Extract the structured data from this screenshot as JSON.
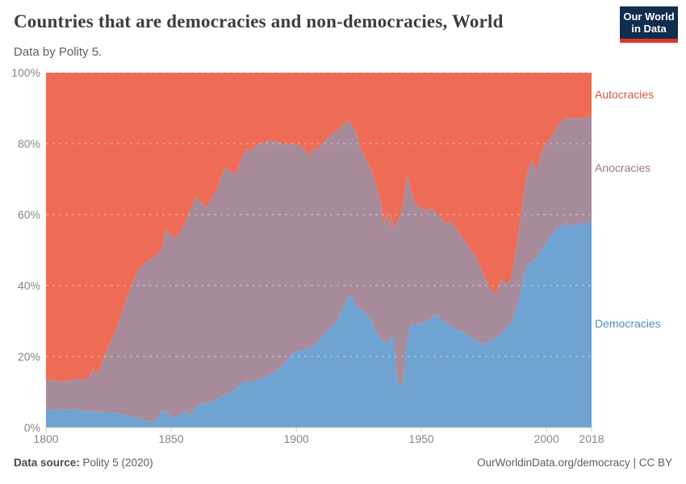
{
  "header": {
    "title": "Countries that are democracies and non-democracies, World",
    "subtitle": "Data by Polity 5.",
    "logo_line1": "Our World",
    "logo_line2": "in Data",
    "logo_bg": "#102d4e",
    "logo_bar": "#dc352b"
  },
  "chart_data": {
    "type": "area",
    "stacked": true,
    "title": "Countries that are democracies and non-democracies, World",
    "xlabel": "",
    "ylabel": "",
    "ylim": [
      0,
      100
    ],
    "xlim": [
      1800,
      2018
    ],
    "grid": "dashed-horizontal",
    "legend_position": "right-edge-labels",
    "y_ticks": [
      {
        "v": 0,
        "label": "0%"
      },
      {
        "v": 20,
        "label": "20%"
      },
      {
        "v": 40,
        "label": "40%"
      },
      {
        "v": 60,
        "label": "60%"
      },
      {
        "v": 80,
        "label": "80%"
      },
      {
        "v": 100,
        "label": "100%"
      }
    ],
    "x_ticks": [
      {
        "v": 1800,
        "label": "1800"
      },
      {
        "v": 1850,
        "label": "1850"
      },
      {
        "v": 1900,
        "label": "1900"
      },
      {
        "v": 1950,
        "label": "1950"
      },
      {
        "v": 2000,
        "label": "2000"
      },
      {
        "v": 2018,
        "label": "2018"
      }
    ],
    "x": [
      1800,
      1804,
      1808,
      1812,
      1815,
      1817,
      1819,
      1820,
      1822,
      1824,
      1826,
      1828,
      1830,
      1832,
      1834,
      1836,
      1838,
      1840,
      1842,
      1844,
      1846,
      1848,
      1850,
      1852,
      1854,
      1856,
      1858,
      1860,
      1862,
      1864,
      1866,
      1868,
      1870,
      1872,
      1874,
      1876,
      1878,
      1880,
      1882,
      1884,
      1886,
      1888,
      1890,
      1892,
      1894,
      1896,
      1898,
      1900,
      1902,
      1904,
      1905,
      1907,
      1909,
      1911,
      1913,
      1915,
      1917,
      1919,
      1921,
      1922,
      1924,
      1926,
      1928,
      1930,
      1932,
      1934,
      1935,
      1936,
      1937,
      1938,
      1939,
      1940,
      1941,
      1942,
      1943,
      1944,
      1945,
      1946,
      1948,
      1950,
      1952,
      1954,
      1956,
      1958,
      1960,
      1962,
      1964,
      1966,
      1968,
      1970,
      1972,
      1974,
      1976,
      1978,
      1980,
      1982,
      1984,
      1986,
      1988,
      1990,
      1992,
      1994,
      1996,
      1998,
      2000,
      2002,
      2004,
      2005,
      2006,
      2007,
      2008,
      2009,
      2010,
      2011,
      2012,
      2013,
      2014,
      2015,
      2016,
      2017,
      2018
    ],
    "series": [
      {
        "name": "Democracies",
        "color": "#6fa3d2",
        "label_color": "#4d8ec1",
        "values": [
          4.8,
          5.0,
          5.2,
          5.1,
          4.8,
          4.6,
          4.5,
          4.5,
          4.4,
          4.3,
          4.1,
          4.0,
          3.8,
          3.5,
          3.2,
          2.9,
          2.5,
          1.8,
          1.7,
          1.7,
          4.3,
          4.8,
          2.9,
          3.0,
          4.0,
          4.8,
          3.3,
          6.0,
          6.6,
          6.8,
          7.2,
          8.0,
          8.8,
          9.5,
          10.0,
          11.0,
          12.3,
          13.2,
          12.8,
          13.2,
          13.8,
          14.5,
          15.2,
          16.0,
          17.0,
          18.5,
          20.8,
          21.3,
          21.8,
          22.2,
          22.3,
          23.0,
          24.5,
          26.3,
          27.8,
          29.0,
          31.0,
          34.0,
          36.8,
          37.3,
          34.2,
          33.5,
          32.0,
          30.2,
          27.0,
          24.8,
          24.3,
          24.0,
          23.6,
          25.5,
          26.0,
          15.0,
          12.2,
          11.8,
          13.5,
          23.5,
          27.0,
          29.5,
          28.8,
          29.5,
          30.0,
          30.8,
          32.0,
          30.3,
          29.5,
          28.5,
          27.5,
          27.2,
          26.2,
          25.3,
          24.5,
          23.4,
          23.8,
          24.5,
          25.5,
          26.5,
          28.0,
          29.5,
          33.5,
          39.5,
          45.5,
          46.5,
          48.0,
          50.0,
          52.0,
          54.0,
          56.5,
          56.0,
          57.2,
          56.3,
          58.0,
          56.8,
          57.5,
          56.5,
          58.0,
          56.8,
          57.8,
          56.5,
          58.0,
          57.5,
          58.5
        ]
      },
      {
        "name": "Anocracies",
        "color": "#a78b9b",
        "label_color": "#9c7588",
        "values": [
          8.7,
          8.2,
          7.8,
          8.7,
          8.6,
          9.6,
          12.0,
          10.3,
          13.1,
          16.7,
          20.4,
          23.5,
          27.7,
          32.5,
          36.3,
          40.1,
          43.0,
          44.7,
          45.8,
          46.8,
          45.7,
          51.2,
          51.1,
          50.5,
          51.5,
          53.7,
          58.7,
          59.0,
          56.9,
          55.2,
          57.3,
          58.5,
          61.7,
          64.0,
          62.0,
          60.5,
          63.2,
          65.3,
          65.2,
          66.3,
          66.2,
          66.0,
          65.8,
          64.5,
          63.0,
          61.5,
          59.2,
          58.5,
          57.5,
          55.8,
          54.2,
          55.5,
          54.3,
          54.2,
          54.2,
          54.0,
          53.0,
          51.5,
          50.0,
          48.2,
          48.8,
          45.0,
          43.5,
          42.3,
          41.0,
          38.7,
          32.2,
          37.0,
          33.4,
          34.5,
          29.5,
          42.5,
          46.8,
          48.7,
          51.0,
          47.5,
          42.5,
          37.0,
          33.7,
          32.5,
          31.0,
          31.2,
          28.5,
          28.7,
          28.0,
          29.5,
          28.5,
          26.8,
          25.8,
          24.7,
          23.5,
          21.1,
          17.7,
          14.0,
          12.3,
          15.3,
          12.5,
          12.5,
          17.5,
          21.5,
          25.5,
          29.0,
          24.5,
          27.5,
          28.0,
          28.0,
          28.0,
          29.5,
          29.3,
          30.7,
          29.5,
          30.2,
          29.7,
          30.5,
          29.5,
          30.2,
          29.5,
          30.5,
          29.5,
          30.1,
          29.3
        ]
      },
      {
        "name": "Autocracies",
        "color": "#ee6c55",
        "label_color": "#d8573f",
        "values": [
          86.5,
          86.8,
          87.0,
          86.2,
          86.6,
          85.8,
          83.5,
          85.2,
          82.5,
          79.0,
          75.5,
          72.5,
          68.5,
          64.0,
          60.5,
          57.0,
          54.5,
          53.5,
          52.5,
          51.5,
          50.0,
          44.0,
          46.0,
          46.5,
          44.5,
          41.5,
          38.0,
          35.0,
          36.5,
          38.0,
          35.5,
          33.5,
          29.5,
          26.5,
          28.0,
          28.5,
          24.5,
          21.5,
          22.0,
          20.5,
          20.0,
          19.5,
          19.0,
          19.5,
          20.0,
          20.0,
          20.0,
          20.2,
          20.7,
          22.0,
          23.5,
          21.5,
          21.2,
          19.5,
          18.0,
          17.0,
          16.0,
          14.5,
          13.2,
          14.5,
          17.0,
          21.5,
          24.5,
          27.5,
          32.0,
          36.5,
          43.5,
          39.0,
          43.0,
          40.0,
          44.5,
          42.5,
          41.0,
          39.5,
          35.5,
          29.0,
          30.5,
          33.5,
          37.5,
          38.0,
          39.0,
          38.0,
          39.5,
          41.0,
          42.5,
          42.0,
          44.0,
          46.0,
          48.0,
          50.0,
          52.0,
          55.5,
          58.5,
          61.5,
          62.2,
          58.2,
          59.5,
          58.0,
          49.0,
          39.0,
          29.0,
          24.5,
          27.5,
          22.5,
          20.0,
          18.0,
          15.5,
          14.5,
          13.5,
          13.0,
          12.5,
          13.0,
          12.8,
          13.0,
          12.5,
          13.0,
          12.7,
          13.0,
          12.5,
          12.4,
          12.2
        ]
      }
    ],
    "axis_text_color": "#858585",
    "axis_line_color": "#c9c9c9",
    "gridline_style": "rgba(255,255,255,0.55)"
  },
  "footer": {
    "source_label": "Data source:",
    "source_value": " Polity 5 (2020)",
    "credit": "OurWorldinData.org/democracy | CC BY"
  }
}
